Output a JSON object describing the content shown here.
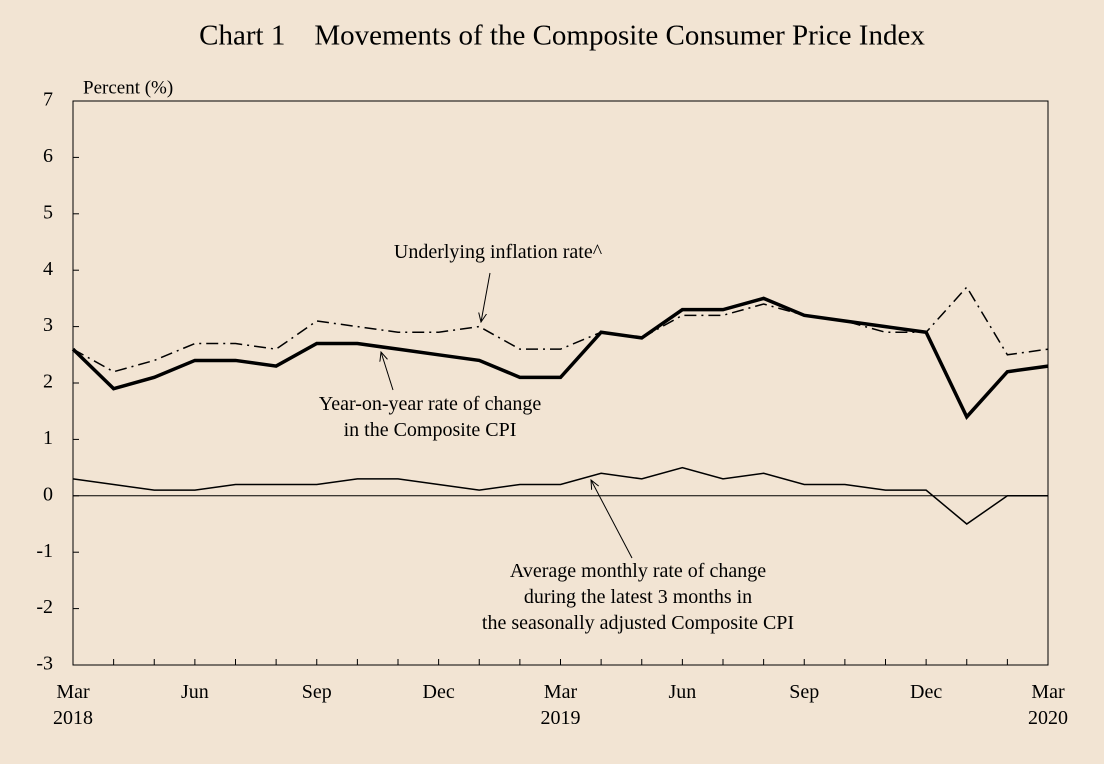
{
  "chart_data": {
    "type": "line",
    "title": "Chart 1　Movements of the Composite Consumer Price Index",
    "y_label": "Percent (%)",
    "categories": [
      "Mar\n2018",
      null,
      null,
      "Jun",
      null,
      null,
      "Sep",
      null,
      null,
      "Dec",
      null,
      null,
      "Mar\n2019",
      null,
      null,
      "Jun",
      null,
      null,
      "Sep",
      null,
      null,
      "Dec",
      null,
      null,
      "Mar\n2020"
    ],
    "series": [
      {
        "name": "Year-on-year rate of change\nin the Composite CPI",
        "color": "#000000",
        "line_style": "solid",
        "line_width": 3.5,
        "values": [
          2.6,
          1.9,
          2.1,
          2.4,
          2.4,
          2.3,
          2.7,
          2.7,
          2.6,
          2.5,
          2.4,
          2.1,
          2.1,
          2.9,
          2.8,
          3.3,
          3.3,
          3.5,
          3.2,
          3.1,
          3.0,
          2.9,
          1.4,
          2.2,
          2.3
        ]
      },
      {
        "name": "Underlying inflation rate^",
        "color": "#000000",
        "line_style": "dashdot",
        "line_width": 1.5,
        "values": [
          2.6,
          2.2,
          2.4,
          2.7,
          2.7,
          2.6,
          3.1,
          3.0,
          2.9,
          2.9,
          3.0,
          2.6,
          2.6,
          2.9,
          2.8,
          3.2,
          3.2,
          3.4,
          3.2,
          3.1,
          2.9,
          2.9,
          3.7,
          2.5,
          2.6
        ]
      },
      {
        "name": "Average monthly rate of change\nduring the latest 3 months in\nthe seasonally adjusted Composite CPI",
        "color": "#000000",
        "line_style": "solid",
        "line_width": 1.5,
        "values": [
          0.3,
          0.2,
          0.1,
          0.1,
          0.2,
          0.2,
          0.2,
          0.3,
          0.3,
          0.2,
          0.1,
          0.2,
          0.2,
          0.4,
          0.3,
          0.5,
          0.3,
          0.4,
          0.2,
          0.2,
          0.1,
          0.1,
          -0.5,
          0.0,
          0.0
        ]
      }
    ],
    "ylim": [
      -3,
      7
    ],
    "yticks": [
      -3,
      -2,
      -1,
      0,
      1,
      2,
      3,
      4,
      5,
      6,
      7
    ],
    "zero_line": true
  }
}
